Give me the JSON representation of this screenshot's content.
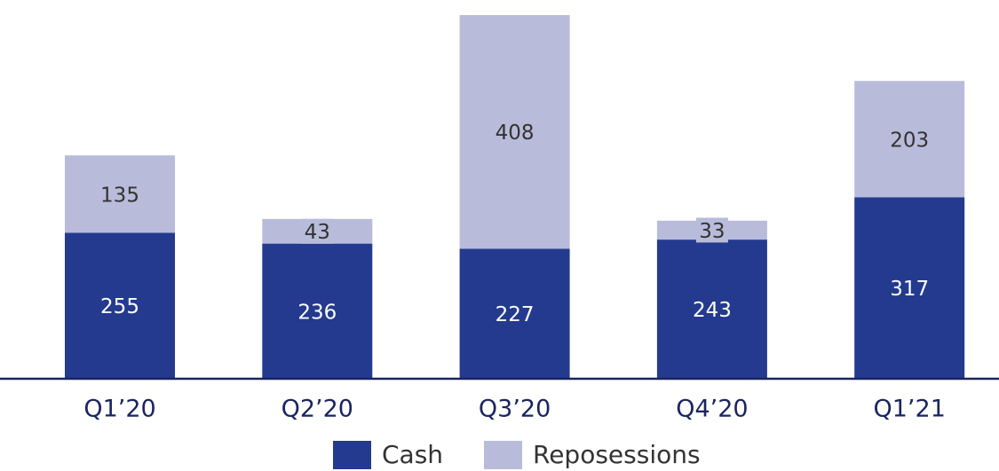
{
  "chart_data": {
    "type": "bar",
    "stacked": true,
    "categories": [
      "Q1’20",
      "Q2’20",
      "Q3’20",
      "Q4’20",
      "Q1’21"
    ],
    "series": [
      {
        "name": "Cash",
        "color": "#233a8f",
        "values": [
          255,
          236,
          227,
          243,
          317
        ]
      },
      {
        "name": "Reposessions",
        "color": "#b8bcda",
        "values": [
          135,
          43,
          408,
          33,
          203
        ]
      }
    ],
    "legend": "bottom"
  }
}
